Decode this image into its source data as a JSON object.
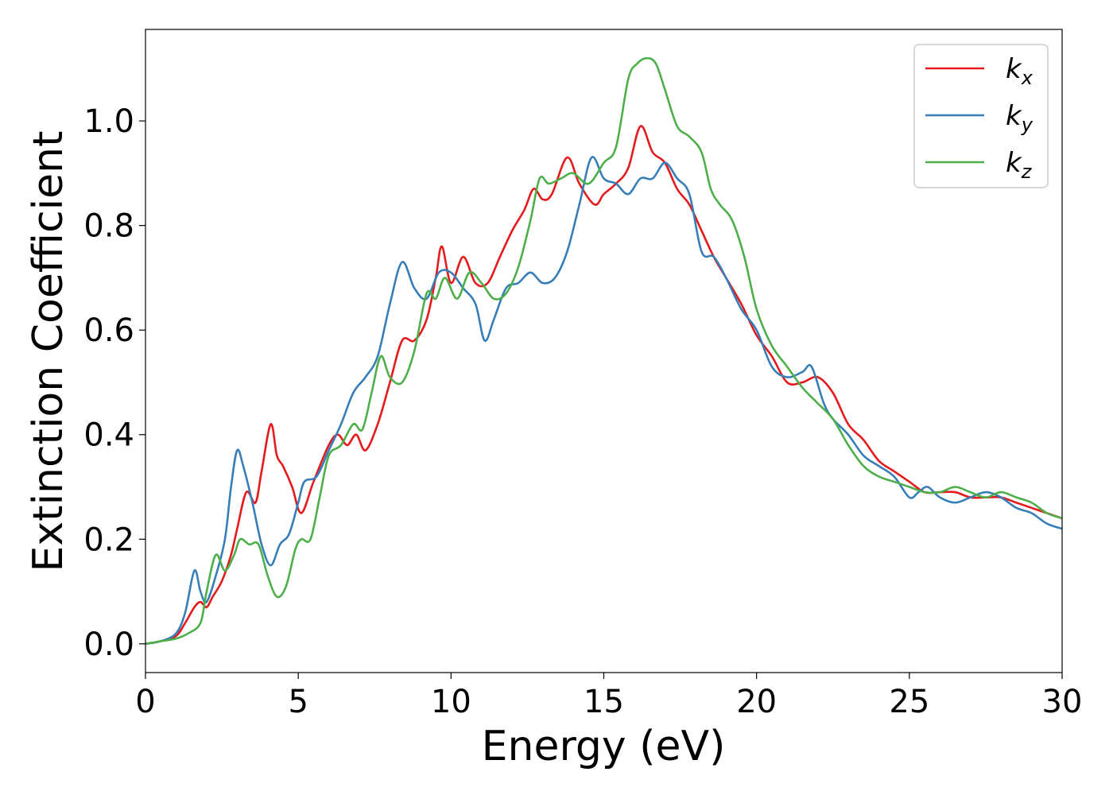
{
  "chart_data": {
    "type": "line",
    "xlabel": "Energy (eV)",
    "ylabel": "Extinction Coefficient",
    "xlim": [
      0,
      30
    ],
    "ylim": [
      -0.055,
      1.175
    ],
    "xticks": [
      0,
      5,
      10,
      15,
      20,
      25,
      30
    ],
    "xtick_labels": [
      "0",
      "5",
      "10",
      "15",
      "20",
      "25",
      "30"
    ],
    "yticks": [
      0.0,
      0.2,
      0.4,
      0.6,
      0.8,
      1.0
    ],
    "ytick_labels": [
      "0.0",
      "0.2",
      "0.4",
      "0.6",
      "0.8",
      "1.0"
    ],
    "grid": false,
    "legend_position": "top-right",
    "series": [
      {
        "name": "k_x",
        "label_base": "k",
        "label_sub": "x",
        "color": "#e41a1c",
        "x": [
          0,
          0.5,
          1.0,
          1.3,
          1.6,
          1.8,
          2.0,
          2.2,
          2.5,
          2.8,
          3.0,
          3.3,
          3.6,
          3.8,
          4.1,
          4.3,
          4.5,
          4.8,
          5.1,
          5.5,
          6.0,
          6.3,
          6.6,
          6.9,
          7.2,
          7.6,
          8.0,
          8.4,
          8.8,
          9.2,
          9.5,
          9.7,
          10.0,
          10.4,
          10.8,
          11.2,
          11.6,
          12.0,
          12.4,
          12.7,
          13.0,
          13.3,
          13.8,
          14.2,
          14.7,
          15.0,
          15.4,
          15.8,
          16.2,
          16.6,
          17.0,
          17.4,
          17.8,
          18.2,
          18.6,
          19.0,
          19.5,
          20.0,
          20.5,
          21.0,
          21.5,
          22.0,
          22.5,
          23.0,
          23.5,
          24.0,
          24.5,
          25.0,
          25.5,
          26.0,
          26.5,
          27.0,
          27.5,
          28.0,
          28.5,
          29.0,
          29.5,
          30.0
        ],
        "y": [
          0.0,
          0.005,
          0.015,
          0.04,
          0.07,
          0.08,
          0.07,
          0.09,
          0.12,
          0.17,
          0.22,
          0.29,
          0.27,
          0.33,
          0.42,
          0.36,
          0.34,
          0.3,
          0.25,
          0.31,
          0.38,
          0.4,
          0.38,
          0.4,
          0.37,
          0.42,
          0.5,
          0.58,
          0.58,
          0.62,
          0.7,
          0.76,
          0.69,
          0.74,
          0.69,
          0.69,
          0.74,
          0.79,
          0.83,
          0.87,
          0.85,
          0.86,
          0.93,
          0.88,
          0.84,
          0.86,
          0.88,
          0.91,
          0.99,
          0.94,
          0.92,
          0.87,
          0.84,
          0.79,
          0.74,
          0.7,
          0.65,
          0.59,
          0.55,
          0.5,
          0.5,
          0.51,
          0.48,
          0.42,
          0.39,
          0.35,
          0.33,
          0.31,
          0.29,
          0.29,
          0.29,
          0.28,
          0.28,
          0.28,
          0.27,
          0.26,
          0.25,
          0.24
        ]
      },
      {
        "name": "k_y",
        "label_base": "k",
        "label_sub": "y",
        "color": "#377eb8",
        "x": [
          0,
          0.5,
          1.0,
          1.3,
          1.6,
          1.8,
          2.0,
          2.3,
          2.6,
          2.8,
          3.0,
          3.2,
          3.5,
          3.8,
          4.1,
          4.4,
          4.7,
          5.0,
          5.2,
          5.6,
          6.0,
          6.4,
          6.8,
          7.2,
          7.6,
          8.0,
          8.4,
          8.8,
          9.2,
          9.6,
          10.0,
          10.4,
          10.8,
          11.1,
          11.4,
          11.8,
          12.2,
          12.6,
          13.0,
          13.4,
          13.8,
          14.2,
          14.6,
          15.0,
          15.4,
          15.8,
          16.2,
          16.6,
          17.0,
          17.4,
          17.8,
          18.2,
          18.6,
          19.0,
          19.5,
          20.0,
          20.5,
          21.0,
          21.5,
          21.8,
          22.2,
          22.5,
          23.0,
          23.5,
          24.0,
          24.5,
          25.0,
          25.3,
          25.6,
          26.0,
          26.5,
          27.0,
          27.5,
          28.0,
          28.5,
          29.0,
          29.5,
          30.0
        ],
        "y": [
          0.0,
          0.005,
          0.02,
          0.06,
          0.14,
          0.1,
          0.08,
          0.13,
          0.2,
          0.3,
          0.37,
          0.34,
          0.27,
          0.19,
          0.15,
          0.19,
          0.21,
          0.27,
          0.31,
          0.32,
          0.37,
          0.42,
          0.48,
          0.51,
          0.55,
          0.65,
          0.73,
          0.68,
          0.66,
          0.71,
          0.71,
          0.68,
          0.65,
          0.58,
          0.62,
          0.68,
          0.69,
          0.71,
          0.69,
          0.7,
          0.75,
          0.84,
          0.93,
          0.89,
          0.88,
          0.86,
          0.89,
          0.89,
          0.92,
          0.89,
          0.86,
          0.75,
          0.74,
          0.7,
          0.64,
          0.6,
          0.53,
          0.51,
          0.52,
          0.53,
          0.46,
          0.43,
          0.4,
          0.36,
          0.34,
          0.32,
          0.28,
          0.29,
          0.3,
          0.28,
          0.27,
          0.28,
          0.29,
          0.28,
          0.26,
          0.25,
          0.23,
          0.22
        ]
      },
      {
        "name": "k_z",
        "label_base": "k",
        "label_sub": "z",
        "color": "#4daf4a",
        "x": [
          0,
          0.5,
          1.0,
          1.4,
          1.8,
          2.0,
          2.3,
          2.6,
          2.9,
          3.1,
          3.4,
          3.7,
          4.0,
          4.3,
          4.6,
          4.9,
          5.1,
          5.4,
          5.7,
          6.0,
          6.4,
          6.8,
          7.1,
          7.4,
          7.7,
          8.0,
          8.4,
          8.8,
          9.2,
          9.5,
          9.8,
          10.2,
          10.6,
          11.0,
          11.4,
          11.8,
          12.2,
          12.6,
          12.9,
          13.2,
          13.6,
          14.0,
          14.5,
          15.0,
          15.4,
          15.8,
          16.1,
          16.4,
          16.7,
          17.0,
          17.4,
          17.8,
          18.2,
          18.5,
          18.8,
          19.2,
          19.6,
          20.0,
          20.5,
          21.0,
          21.5,
          22.0,
          22.5,
          23.0,
          23.5,
          24.0,
          24.5,
          25.0,
          25.5,
          26.0,
          26.5,
          27.0,
          27.5,
          28.0,
          28.5,
          29.0,
          29.5,
          30.0
        ],
        "y": [
          0.0,
          0.005,
          0.01,
          0.02,
          0.04,
          0.1,
          0.17,
          0.14,
          0.17,
          0.2,
          0.19,
          0.19,
          0.13,
          0.09,
          0.11,
          0.18,
          0.2,
          0.2,
          0.28,
          0.36,
          0.38,
          0.42,
          0.41,
          0.48,
          0.55,
          0.51,
          0.5,
          0.56,
          0.67,
          0.66,
          0.7,
          0.66,
          0.71,
          0.69,
          0.66,
          0.67,
          0.72,
          0.81,
          0.89,
          0.88,
          0.89,
          0.9,
          0.88,
          0.92,
          0.95,
          1.08,
          1.11,
          1.12,
          1.11,
          1.06,
          0.99,
          0.97,
          0.94,
          0.87,
          0.84,
          0.81,
          0.74,
          0.64,
          0.57,
          0.53,
          0.49,
          0.46,
          0.43,
          0.38,
          0.34,
          0.32,
          0.31,
          0.3,
          0.29,
          0.29,
          0.3,
          0.29,
          0.28,
          0.29,
          0.28,
          0.27,
          0.25,
          0.24
        ]
      }
    ]
  }
}
